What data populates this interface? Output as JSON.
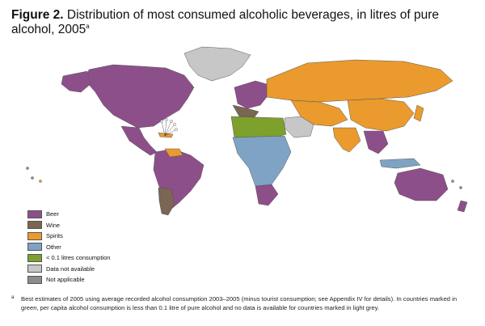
{
  "title": {
    "label": "Figure 2.",
    "text": "Distribution of most consumed alcoholic beverages, in litres of pure alcohol, 2005",
    "marker": "a"
  },
  "legend": [
    {
      "label": "Beer",
      "color": "#8d4f8a"
    },
    {
      "label": "Wine",
      "color": "#7b6553"
    },
    {
      "label": "Spirits",
      "color": "#eb9a2d"
    },
    {
      "label": "Other",
      "color": "#7fa3c4"
    },
    {
      "label": "< 0.1 litres consumption",
      "color": "#7ea02c"
    },
    {
      "label": "Data not available",
      "color": "#c7c7c7"
    },
    {
      "label": "Not applicable",
      "color": "#8c8c8c"
    }
  ],
  "footnote": {
    "marker": "a",
    "text": "Best estimates of 2005 using average recorded alcohol consumption 2003–2005 (minus tourist consumption; see Appendix IV for details). In countries marked in green, per capita alcohol consumption is less than 0.1 litre of pure alcohol and no data is available for countries marked in light grey."
  }
}
